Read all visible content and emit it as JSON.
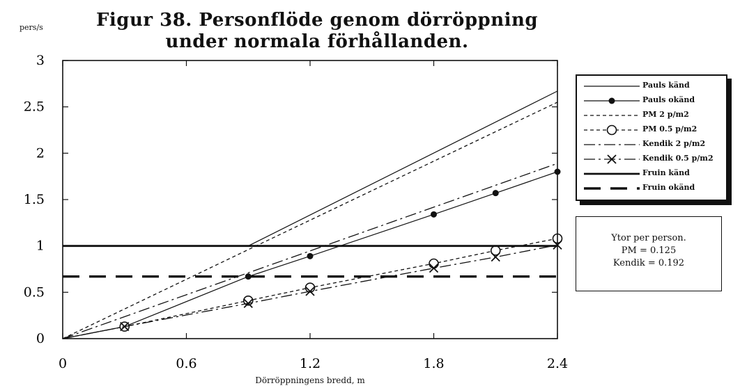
{
  "chart_data": {
    "type": "line",
    "title_line1": "Figur 38. Personflöde genom dörröppning",
    "title_line2": "under normala förhållanden.",
    "ylabel": "pers/s",
    "xlabel": "Dörröppningens bredd, m",
    "xlim": [
      0,
      2.4
    ],
    "ylim": [
      0,
      3
    ],
    "x_ticks": [
      "0",
      "0.6",
      "1.2",
      "1.8",
      "2.4"
    ],
    "y_ticks": [
      "0",
      "0.5",
      "1",
      "1.5",
      "2",
      "2.5",
      "3"
    ],
    "legend_position": "right",
    "series": [
      {
        "name": "Pauls känd",
        "style": "thin-solid",
        "marker": "none",
        "points": [
          [
            0.9,
            1.0
          ],
          [
            2.4,
            2.67
          ]
        ]
      },
      {
        "name": "Pauls okänd",
        "style": "thin-solid",
        "marker": "dot",
        "points": [
          [
            0.0,
            0.0
          ],
          [
            0.3,
            0.13
          ],
          [
            0.9,
            0.67
          ],
          [
            1.2,
            0.89
          ],
          [
            1.8,
            1.34
          ],
          [
            2.1,
            1.57
          ],
          [
            2.4,
            1.8
          ]
        ]
      },
      {
        "name": "PM 2 p/m2",
        "style": "dotted",
        "marker": "none",
        "points": [
          [
            0.0,
            0.0
          ],
          [
            0.9,
            0.96
          ],
          [
            2.4,
            2.55
          ]
        ]
      },
      {
        "name": "PM 0.5 p/m2",
        "style": "dotted",
        "marker": "open-circle",
        "points": [
          [
            0.0,
            0.0
          ],
          [
            0.3,
            0.13
          ],
          [
            0.9,
            0.41
          ],
          [
            1.2,
            0.55
          ],
          [
            1.8,
            0.81
          ],
          [
            2.1,
            0.95
          ],
          [
            2.4,
            1.08
          ]
        ]
      },
      {
        "name": "Kendik 2 p/m2",
        "style": "dash-dot",
        "marker": "none",
        "points": [
          [
            0.0,
            0.0
          ],
          [
            0.9,
            0.71
          ],
          [
            2.4,
            1.89
          ]
        ]
      },
      {
        "name": "Kendik 0.5 p/m2",
        "style": "dash-dot",
        "marker": "cross",
        "points": [
          [
            0.0,
            0.0
          ],
          [
            0.3,
            0.13
          ],
          [
            0.9,
            0.38
          ],
          [
            1.2,
            0.51
          ],
          [
            1.8,
            0.76
          ],
          [
            2.1,
            0.88
          ],
          [
            2.4,
            1.01
          ]
        ]
      },
      {
        "name": "Fruin känd",
        "style": "thick-solid",
        "marker": "none",
        "points": [
          [
            0.0,
            1.0
          ],
          [
            2.4,
            1.0
          ]
        ]
      },
      {
        "name": "Fruin okänd",
        "style": "thick-dashed",
        "marker": "none",
        "points": [
          [
            0.0,
            0.67
          ],
          [
            2.4,
            0.67
          ]
        ]
      }
    ]
  },
  "note": {
    "line1": "Ytor per person.",
    "line2": "PM = 0.125",
    "line3": "Kendik = 0.192"
  }
}
